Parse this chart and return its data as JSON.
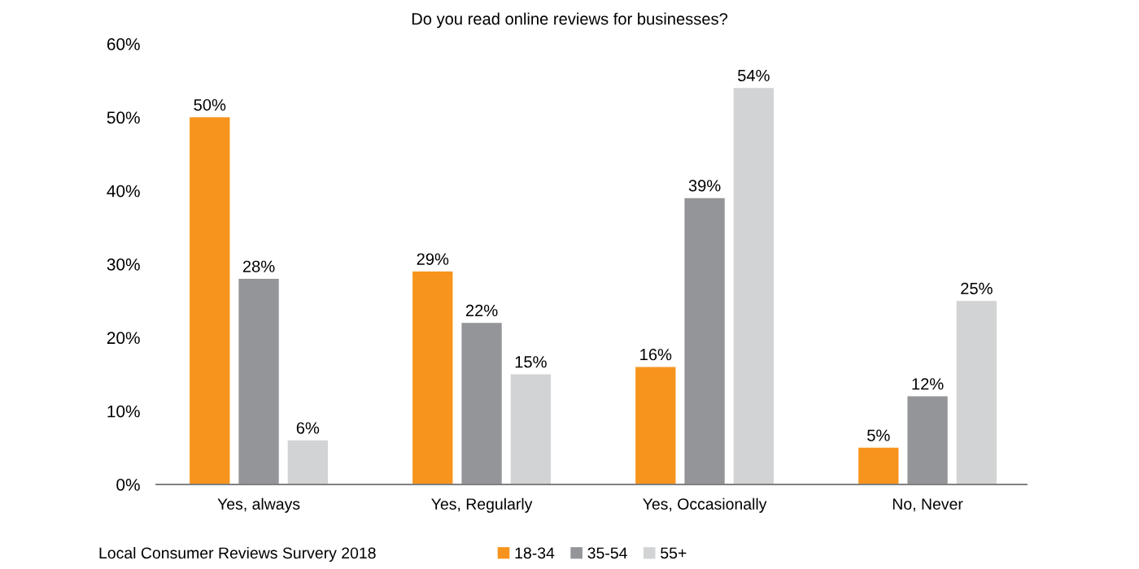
{
  "chart_data": {
    "type": "bar",
    "title": "Do you read online reviews for businesses?",
    "categories": [
      "Yes, always",
      "Yes, Regularly",
      "Yes, Occasionally",
      "No, Never"
    ],
    "series": [
      {
        "name": "18-34",
        "color": "#f7941d",
        "values": [
          50,
          29,
          16,
          5
        ],
        "value_labels": [
          "50%",
          "29%",
          "16%",
          "5%"
        ]
      },
      {
        "name": "35-54",
        "color": "#939598",
        "values": [
          28,
          22,
          39,
          12
        ],
        "value_labels": [
          "28%",
          "22%",
          "39%",
          "12%"
        ]
      },
      {
        "name": "55+",
        "color": "#d1d3d4",
        "values": [
          6,
          15,
          54,
          25
        ],
        "value_labels": [
          "6%",
          "15%",
          "54%",
          "25%"
        ]
      }
    ],
    "ylim": [
      0,
      60
    ],
    "yticks": [
      {
        "value": 0,
        "label": "0%"
      },
      {
        "value": 10,
        "label": "10%"
      },
      {
        "value": 20,
        "label": "20%"
      },
      {
        "value": 30,
        "label": "30%"
      },
      {
        "value": 40,
        "label": "40%"
      },
      {
        "value": 50,
        "label": "50%"
      },
      {
        "value": 60,
        "label": "60%"
      }
    ],
    "grid": false,
    "legend": "bottom",
    "annotations": [
      "Local Consumer Reviews Survery 2018"
    ]
  }
}
